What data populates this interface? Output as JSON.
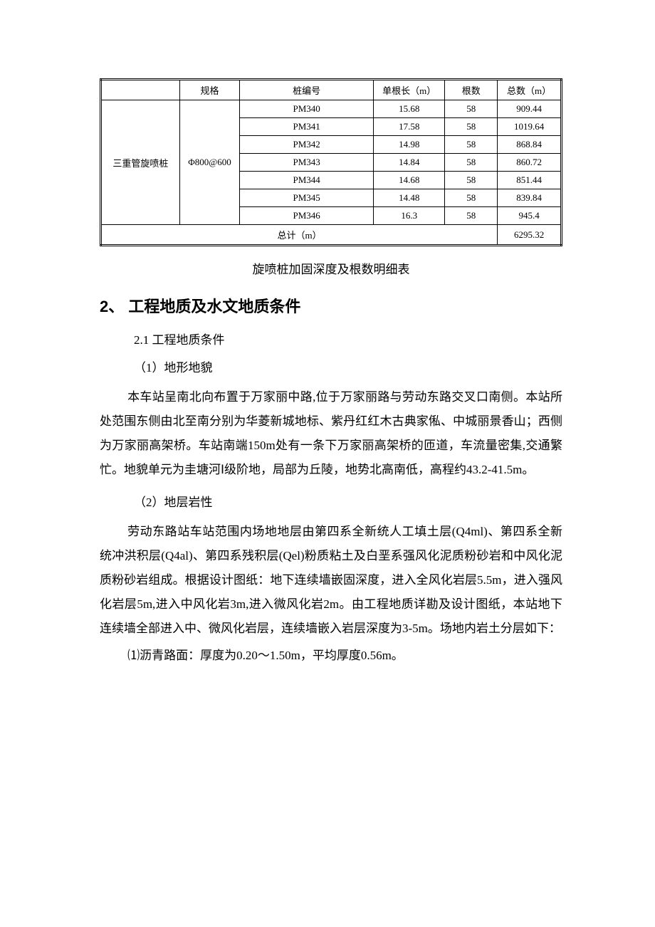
{
  "table": {
    "headers": [
      "规格",
      "桩编号",
      "单根长（m）",
      "根数",
      "总数（m）"
    ],
    "row_label": "三重管旋喷桩",
    "spec": "Φ800@600",
    "rows": [
      {
        "id": "PM340",
        "len": "15.68",
        "count": "58",
        "total": "909.44"
      },
      {
        "id": "PM341",
        "len": "17.58",
        "count": "58",
        "total": "1019.64"
      },
      {
        "id": "PM342",
        "len": "14.98",
        "count": "58",
        "total": "868.84"
      },
      {
        "id": "PM343",
        "len": "14.84",
        "count": "58",
        "total": "860.72"
      },
      {
        "id": "PM344",
        "len": "14.68",
        "count": "58",
        "total": "851.44"
      },
      {
        "id": "PM345",
        "len": "14.48",
        "count": "58",
        "total": "839.84"
      },
      {
        "id": "PM346",
        "len": "16.3",
        "count": "58",
        "total": "945.4"
      }
    ],
    "footer_label": "总计（m）",
    "footer_total": "6295.32"
  },
  "caption": "旋喷桩加固深度及根数明细表",
  "heading": "2、 工程地质及水文地质条件",
  "sub1": "2.1 工程地质条件",
  "sub2": "（1）地形地貌",
  "para1": "本车站呈南北向布置于万家丽中路,位于万家丽路与劳动东路交叉口南侧。本站所处范围东侧由北至南分别为华菱新城地标、紫丹红红木古典家俬、中城丽景香山；西侧为万家丽高架桥。车站南端150m处有一条下万家丽高架桥的匝道，车流量密集,交通繁忙。地貌单元为圭塘河Ⅰ级阶地，局部为丘陵，地势北高南低，高程约43.2-41.5m。",
  "sub3": "（2）地层岩性",
  "para2": "劳动东路站车站范围内场地地层由第四系全新统人工填土层(Q4ml)、第四系全新统冲洪积层(Q4al)、第四系残积层(Qel)粉质粘土及白垩系强风化泥质粉砂岩和中风化泥质粉砂岩组成。根据设计图纸：地下连续墙嵌固深度，进入全风化岩层5.5m，进入强风化岩层5m,进入中风化岩3m,进入微风化岩2m。由工程地质详勘及设计图纸，本站地下连续墙全部进入中、微风化岩层，连续墙嵌入岩层深度为3-5m。场地内岩土分层如下：",
  "para3": "⑴沥青路面：厚度为0.20～1.50m，平均厚度0.56m。"
}
